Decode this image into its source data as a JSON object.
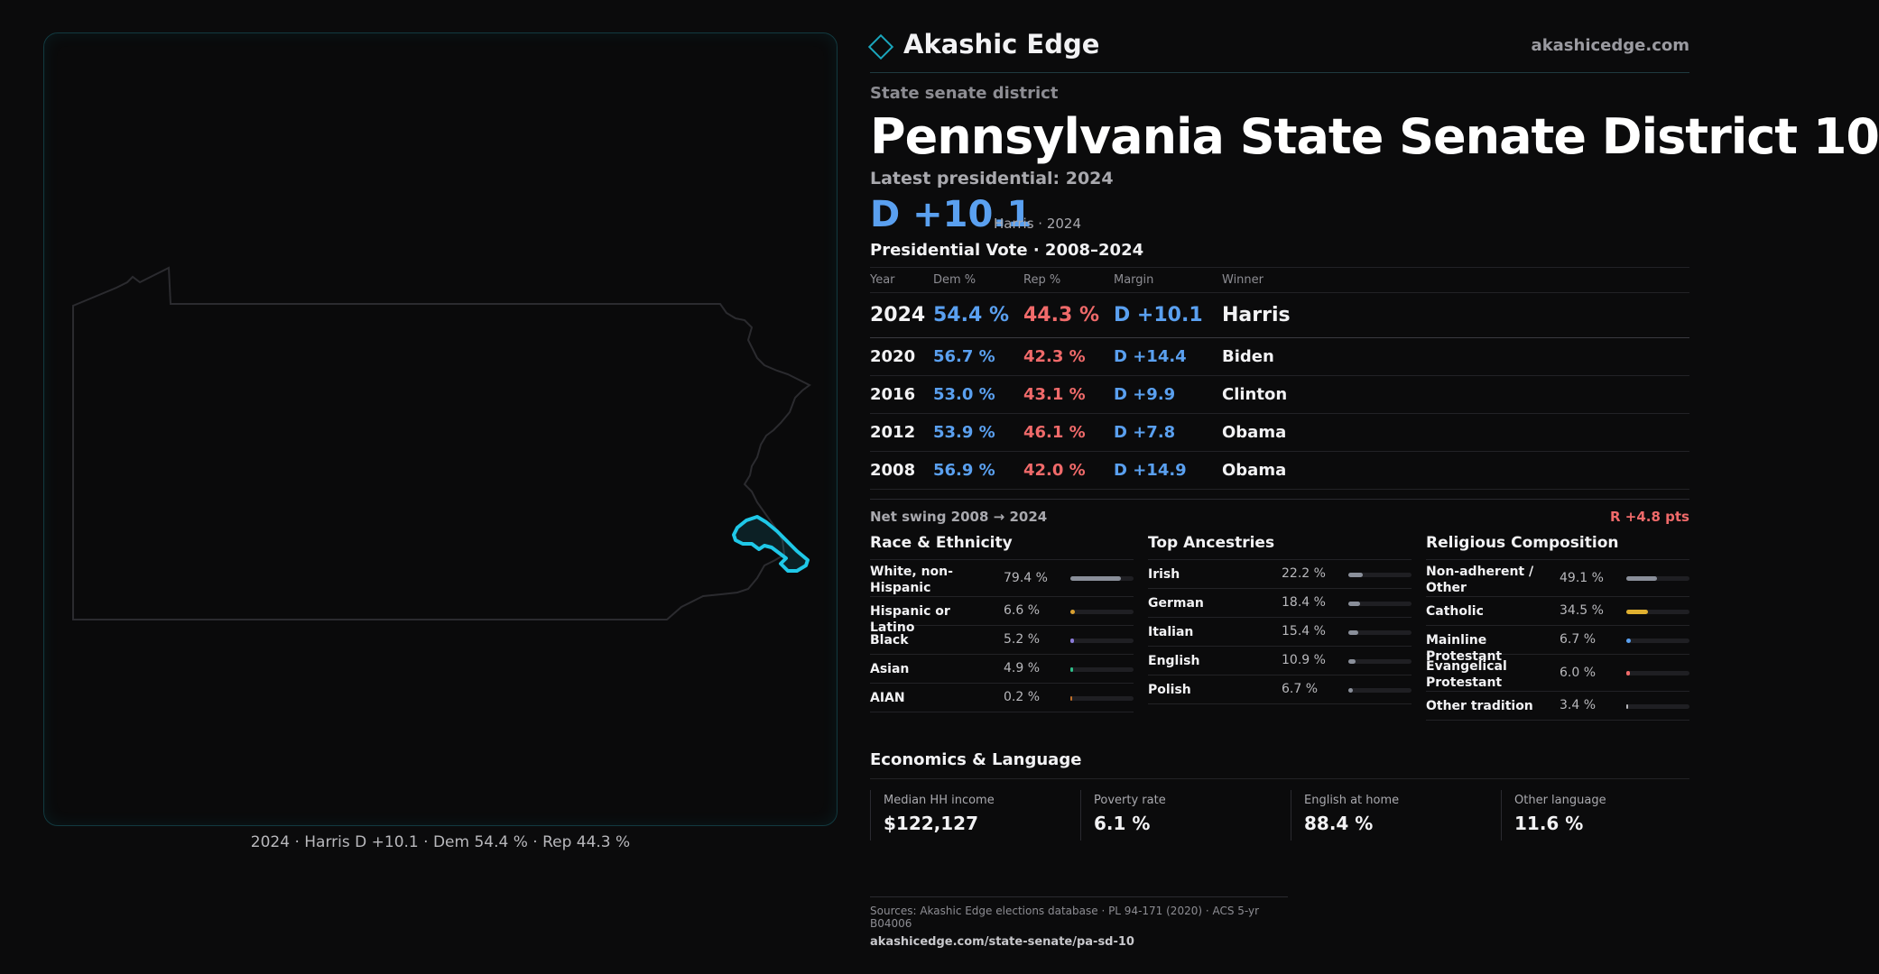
{
  "map": {
    "caption": "2024 · Harris D +10.1 · Dem 54.4 % · Rep 44.3 %",
    "state_outline_color": "#2b2b2f",
    "district_color": "#1fc8e8"
  },
  "brand": {
    "name": "Akashic Edge",
    "url": "akashicedge.com",
    "logo_icon": "diamond-icon"
  },
  "header": {
    "kicker": "State senate district",
    "title": "Pennsylvania State Senate District 10",
    "latest_label": "Latest presidential: 2024",
    "margin": "D +10.1",
    "margin_sub": "Harris · 2024"
  },
  "presidential": {
    "title": "Presidential Vote · 2008–2024",
    "headers": [
      "Year",
      "Dem %",
      "Rep %",
      "Margin",
      "Winner"
    ],
    "rows": [
      {
        "year": "2024",
        "dem": "54.4 %",
        "rep": "44.3 %",
        "margin": "D +10.1",
        "winner": "Harris"
      },
      {
        "year": "2020",
        "dem": "56.7 %",
        "rep": "42.3 %",
        "margin": "D +14.4",
        "winner": "Biden"
      },
      {
        "year": "2016",
        "dem": "53.0 %",
        "rep": "43.1 %",
        "margin": "D +9.9",
        "winner": "Clinton"
      },
      {
        "year": "2012",
        "dem": "53.9 %",
        "rep": "46.1 %",
        "margin": "D +7.8",
        "winner": "Obama"
      },
      {
        "year": "2008",
        "dem": "56.9 %",
        "rep": "42.0 %",
        "margin": "D +14.9",
        "winner": "Obama"
      }
    ],
    "swing_label": "Net swing 2008 → 2024",
    "swing_value": "R +4.8 pts"
  },
  "race": {
    "title": "Race & Ethnicity",
    "items": [
      {
        "label": "White, non-Hispanic",
        "pct": "79.4 %",
        "value": 0.794,
        "color": "#8a8f9a"
      },
      {
        "label": "Hispanic or Latino",
        "pct": "6.6 %",
        "value": 0.066,
        "color": "#d9a030"
      },
      {
        "label": "Black",
        "pct": "5.2 %",
        "value": 0.052,
        "color": "#8a7ad8"
      },
      {
        "label": "Asian",
        "pct": "4.9 %",
        "value": 0.049,
        "color": "#2fbf8a"
      },
      {
        "label": "AIAN",
        "pct": "0.2 %",
        "value": 0.002,
        "color": "#c0702a"
      }
    ]
  },
  "ancestry": {
    "title": "Top Ancestries",
    "items": [
      {
        "label": "Irish",
        "pct": "22.2 %",
        "value": 0.222,
        "color": "#8a8f9a"
      },
      {
        "label": "German",
        "pct": "18.4 %",
        "value": 0.184,
        "color": "#8a8f9a"
      },
      {
        "label": "Italian",
        "pct": "15.4 %",
        "value": 0.154,
        "color": "#8a8f9a"
      },
      {
        "label": "English",
        "pct": "10.9 %",
        "value": 0.109,
        "color": "#8a8f9a"
      },
      {
        "label": "Polish",
        "pct": "6.7 %",
        "value": 0.067,
        "color": "#8a8f9a"
      }
    ]
  },
  "religion": {
    "title": "Religious Composition",
    "items": [
      {
        "label": "Non-adherent / Other",
        "pct": "49.1 %",
        "value": 0.491,
        "color": "#8a8f9a"
      },
      {
        "label": "Catholic",
        "pct": "34.5 %",
        "value": 0.345,
        "color": "#e0b030"
      },
      {
        "label": "Mainline Protestant",
        "pct": "6.7 %",
        "value": 0.067,
        "color": "#5aa0f0"
      },
      {
        "label": "Evangelical Protestant",
        "pct": "6.0 %",
        "value": 0.06,
        "color": "#f06a6a"
      },
      {
        "label": "Other tradition",
        "pct": "3.4 %",
        "value": 0.034,
        "color": "#b8b8bc"
      }
    ]
  },
  "economics": {
    "title": "Economics & Language",
    "items": [
      {
        "label": "Median HH income",
        "value": "$122,127"
      },
      {
        "label": "Poverty rate",
        "value": "6.1 %"
      },
      {
        "label": "English at home",
        "value": "88.4 %"
      },
      {
        "label": "Other language",
        "value": "11.6 %"
      }
    ]
  },
  "sources": {
    "line": "Sources: Akashic Edge elections database · PL 94-171 (2020) · ACS 5-yr B04006",
    "url": "akashicedge.com/state-senate/pa-sd-10"
  }
}
